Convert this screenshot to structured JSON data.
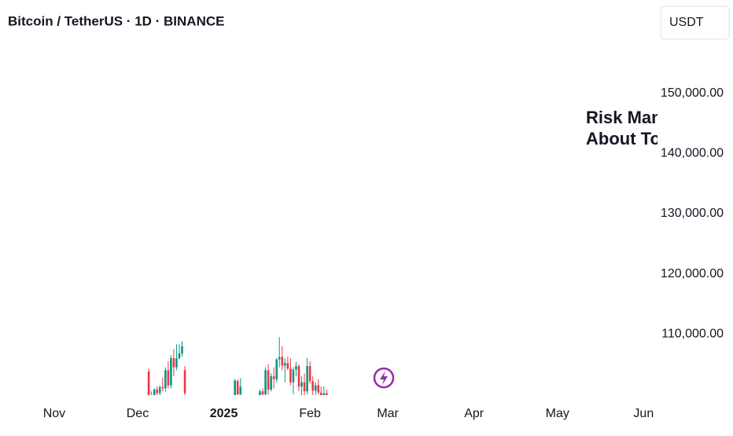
{
  "chart_data": {
    "type": "candlestick",
    "title": "Bitcoin / TetherUS · 1D · BINANCE",
    "currency": "USDT",
    "annotation": [
      "Risk Mana",
      "About To I"
    ],
    "up_color": "#089981",
    "down_color": "#f23645",
    "grid": false,
    "xlim": [
      -19.5,
      217
    ],
    "xticks": [
      {
        "value": 0,
        "label": "Nov"
      },
      {
        "value": 30,
        "label": "Dec"
      },
      {
        "value": 61,
        "label": "2025"
      },
      {
        "value": 92,
        "label": "Feb"
      },
      {
        "value": 120,
        "label": "Mar"
      },
      {
        "value": 151,
        "label": "Apr"
      },
      {
        "value": 181,
        "label": "May"
      },
      {
        "value": 212,
        "label": "Jun"
      }
    ],
    "ylim": [
      100000,
      160000
    ],
    "yticks": [
      {
        "value": 110000,
        "label": "110,000.00"
      },
      {
        "value": 120000,
        "label": "120,000.00"
      },
      {
        "value": 130000,
        "label": "130,000.00"
      },
      {
        "value": 140000,
        "label": "140,000.00"
      },
      {
        "value": 150000,
        "label": "150,000.00"
      }
    ],
    "x": [
      34,
      35,
      36,
      37,
      38,
      39,
      40,
      41,
      42,
      43,
      44,
      45,
      46,
      47,
      65,
      66,
      67,
      74,
      75,
      76,
      77,
      78,
      79,
      80,
      81,
      82,
      83,
      84,
      85,
      86,
      87,
      88,
      89,
      90,
      91,
      92,
      93,
      94,
      95,
      96,
      97,
      98
    ],
    "open": [
      103800,
      99500,
      99200,
      100800,
      100200,
      101200,
      101000,
      104000,
      101500,
      106000,
      104500,
      106000,
      106800,
      104000,
      98500,
      102200,
      100000,
      99500,
      100500,
      100000,
      104000,
      100800,
      103000,
      102500,
      105800,
      106200,
      104800,
      105200,
      104300,
      102000,
      104100,
      104700,
      101300,
      102000,
      100500,
      104700,
      102200,
      100600,
      101500,
      100300,
      99000,
      100200
    ],
    "high": [
      104300,
      100500,
      101000,
      101300,
      101500,
      102800,
      104500,
      105500,
      106500,
      107500,
      108300,
      108300,
      108800,
      104700,
      102500,
      102500,
      102700,
      100800,
      101000,
      104500,
      105000,
      103500,
      104500,
      106000,
      109500,
      108000,
      106000,
      106300,
      106000,
      104500,
      105400,
      105000,
      103000,
      103500,
      106000,
      105500,
      103000,
      102000,
      102500,
      101300,
      101300,
      100800
    ],
    "low": [
      99000,
      98000,
      98500,
      99800,
      99500,
      100500,
      100500,
      101000,
      101000,
      103000,
      104000,
      105800,
      106300,
      99000,
      98000,
      99000,
      99500,
      99000,
      99500,
      99800,
      100000,
      100500,
      101000,
      102000,
      104500,
      104000,
      102000,
      104000,
      101500,
      100000,
      103000,
      100500,
      99500,
      99700,
      100000,
      101800,
      98000,
      99000,
      100000,
      98000,
      98500,
      99500
    ],
    "close": [
      99500,
      99200,
      100800,
      100200,
      101200,
      101000,
      104000,
      101500,
      106000,
      104500,
      106000,
      106800,
      108000,
      100200,
      102300,
      100000,
      101300,
      100500,
      100000,
      104000,
      100800,
      103000,
      102500,
      105800,
      106200,
      104800,
      105200,
      104300,
      102000,
      104100,
      104700,
      101300,
      102000,
      100500,
      104700,
      102200,
      100600,
      101500,
      100300,
      99000,
      100200,
      99700
    ]
  }
}
